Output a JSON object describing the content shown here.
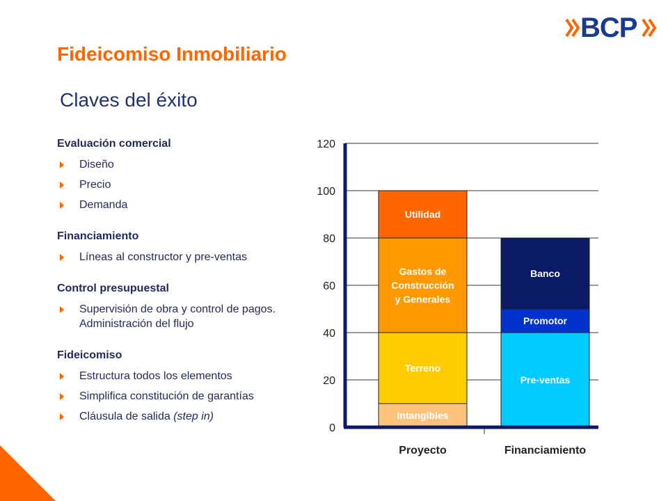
{
  "brand": {
    "name": "BCP"
  },
  "title": "Fideicomiso Inmobiliario",
  "subtitle": "Claves del éxito",
  "sections": [
    {
      "title": "Evaluación comercial",
      "bullets": [
        "Diseño",
        "Precio",
        "Demanda"
      ]
    },
    {
      "title": "Financiamiento",
      "bullets": [
        "Líneas al constructor y pre-ventas"
      ]
    },
    {
      "title": "Control presupuestal",
      "bullets": [
        "Supervisión de obra y control de pagos. Administración del flujo"
      ]
    },
    {
      "title": "Fideicomiso",
      "bullets": [
        "Estructura todos los elementos",
        "Simplifica constitución de garantías",
        "Cláusula de salida"
      ],
      "last_bullet_suffix": "(step in)"
    }
  ],
  "chart_data": {
    "type": "bar",
    "stacked": true,
    "categories": [
      "Proyecto",
      "Financiamiento"
    ],
    "ylim": [
      0,
      120
    ],
    "yticks": [
      "0",
      "20",
      "40",
      "60",
      "80",
      "100",
      "120"
    ],
    "grid": true,
    "stacks": [
      {
        "category": "Proyecto",
        "segments": [
          {
            "label": "Intangibles",
            "from": 0,
            "to": 10,
            "color": "#fcc37e",
            "text_color": "#ffffff"
          },
          {
            "label": "Terreno",
            "from": 10,
            "to": 40,
            "color": "#ffcc00",
            "text_color": "#ffffff"
          },
          {
            "label": "Gastos de Construcción y Generales",
            "lines": [
              "Gastos de",
              "Construcción",
              "y Generales"
            ],
            "from": 40,
            "to": 80,
            "color": "#ff9900",
            "text_color": "#ffffff"
          },
          {
            "label": "Utilidad",
            "from": 80,
            "to": 100,
            "color": "#ff6600",
            "text_color": "#ffffff"
          }
        ]
      },
      {
        "category": "Financiamiento",
        "segments": [
          {
            "label": "Pre-ventas",
            "from": 0,
            "to": 40,
            "color": "#00ccff",
            "text_color": "#ffffff"
          },
          {
            "label": "Promotor",
            "from": 40,
            "to": 50,
            "color": "#0033cc",
            "text_color": "#ffffff"
          },
          {
            "label": "Banco",
            "from": 50,
            "to": 80,
            "color": "#0a1a66",
            "text_color": "#ffffff"
          }
        ]
      }
    ]
  },
  "colors": {
    "accent": "#ff6600",
    "navy": "#1f2a5a",
    "axis": "#0a1a66"
  }
}
